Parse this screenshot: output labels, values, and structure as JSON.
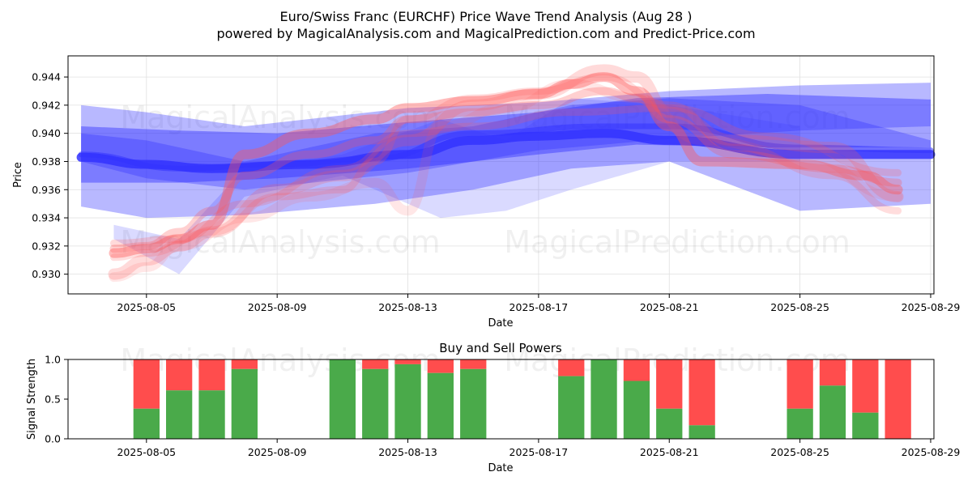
{
  "header": {
    "title": "Euro/Swiss Franc (EURCHF) Price Wave Trend Analysis (Aug 28 )",
    "subtitle": "powered by MagicalAnalysis.com and MagicalPrediction.com and Predict-Price.com"
  },
  "watermarks": [
    "MagicalAnalysis.com",
    "MagicalPrediction.com"
  ],
  "colors": {
    "buy": "#4aaa4a",
    "sell": "#ff4d4d",
    "blue_wave": "#3333ff",
    "red_wave": "#ff5555",
    "grid": "#e0e0e0",
    "axis": "#000000"
  },
  "chart_data": [
    {
      "type": "line",
      "xlabel": "Date",
      "ylabel": "Price",
      "x_axis": "date",
      "xlim": [
        "2025-08-02.6",
        "2025-08-29.1"
      ],
      "ylim": [
        0.9286,
        0.9455
      ],
      "x_ticks": [
        "2025-08-05",
        "2025-08-09",
        "2025-08-13",
        "2025-08-17",
        "2025-08-21",
        "2025-08-25",
        "2025-08-29"
      ],
      "y_ticks": [
        0.93,
        0.932,
        0.934,
        0.936,
        0.938,
        0.94,
        0.942,
        0.944
      ],
      "y_tick_labels": [
        "0.930",
        "0.932",
        "0.934",
        "0.936",
        "0.938",
        "0.940",
        "0.942",
        "0.944"
      ],
      "grid": true,
      "blue_bands": [
        {
          "x": [
            "2025-08-03",
            "2025-08-05",
            "2025-08-08",
            "2025-08-13",
            "2025-08-17",
            "2025-08-21",
            "2025-08-25",
            "2025-08-29"
          ],
          "upper": [
            0.942,
            0.9415,
            0.9405,
            0.9418,
            0.9422,
            0.943,
            0.9434,
            0.9436
          ],
          "lower": [
            0.938,
            0.9368,
            0.936,
            0.9372,
            0.9388,
            0.9396,
            0.9402,
            0.9405
          ],
          "opacity": 0.35
        },
        {
          "x": [
            "2025-08-03",
            "2025-08-06",
            "2025-08-09",
            "2025-08-13",
            "2025-08-17",
            "2025-08-20",
            "2025-08-24",
            "2025-08-29"
          ],
          "upper": [
            0.9405,
            0.9402,
            0.94,
            0.9408,
            0.9415,
            0.9425,
            0.9428,
            0.9424
          ],
          "lower": [
            0.9365,
            0.9365,
            0.9368,
            0.9375,
            0.9385,
            0.9392,
            0.939,
            0.939
          ],
          "opacity": 0.45
        },
        {
          "x": [
            "2025-08-03",
            "2025-08-05",
            "2025-08-08",
            "2025-08-12",
            "2025-08-15",
            "2025-08-18",
            "2025-08-21",
            "2025-08-25",
            "2025-08-29"
          ],
          "upper": [
            0.94,
            0.9395,
            0.938,
            0.94,
            0.9405,
            0.942,
            0.9425,
            0.942,
            0.9395
          ],
          "lower": [
            0.9348,
            0.934,
            0.9342,
            0.935,
            0.936,
            0.9375,
            0.938,
            0.9345,
            0.935
          ],
          "opacity": 0.35
        },
        {
          "x": [
            "2025-08-04",
            "2025-08-06",
            "2025-08-08",
            "2025-08-11",
            "2025-08-14",
            "2025-08-16",
            "2025-08-18",
            "2025-08-21",
            "2025-08-25"
          ],
          "upper": [
            0.9335,
            0.9325,
            0.9375,
            0.9385,
            0.941,
            0.9395,
            0.9425,
            0.942,
            0.9405
          ],
          "lower": [
            0.9325,
            0.93,
            0.9355,
            0.937,
            0.934,
            0.9345,
            0.936,
            0.938,
            0.938
          ],
          "opacity": 0.18
        }
      ],
      "blue_lines": [
        {
          "x": [
            "2025-08-03",
            "2025-08-05",
            "2025-08-07",
            "2025-08-10",
            "2025-08-13",
            "2025-08-15",
            "2025-08-17",
            "2025-08-19",
            "2025-08-21",
            "2025-08-25",
            "2025-08-29"
          ],
          "y": [
            0.9383,
            0.9378,
            0.9375,
            0.9378,
            0.9385,
            0.9395,
            0.9398,
            0.94,
            0.9395,
            0.9385,
            0.9385
          ],
          "width": 11,
          "opacity": 0.85
        },
        {
          "x": [
            "2025-08-03",
            "2025-08-06",
            "2025-08-09",
            "2025-08-12",
            "2025-08-15",
            "2025-08-19",
            "2025-08-21",
            "2025-08-25",
            "2025-08-29"
          ],
          "y": [
            0.9385,
            0.9375,
            0.9378,
            0.9382,
            0.94,
            0.9405,
            0.9405,
            0.939,
            0.9388
          ],
          "width": 7,
          "opacity": 0.55
        }
      ],
      "red_lines": [
        {
          "x": [
            "2025-08-04",
            "2025-08-05",
            "2025-08-06",
            "2025-08-07",
            "2025-08-08",
            "2025-08-10",
            "2025-08-12",
            "2025-08-13",
            "2025-08-15",
            "2025-08-17",
            "2025-08-18",
            "2025-08-19",
            "2025-08-20",
            "2025-08-21",
            "2025-08-22",
            "2025-08-25",
            "2025-08-27",
            "2025-08-28"
          ],
          "y": [
            0.9315,
            0.9318,
            0.9325,
            0.9335,
            0.9385,
            0.94,
            0.941,
            0.9418,
            0.9423,
            0.9428,
            0.9435,
            0.944,
            0.943,
            0.9405,
            0.938,
            0.9378,
            0.937,
            0.936
          ],
          "width": 12,
          "opacity": 0.4
        },
        {
          "x": [
            "2025-08-04",
            "2025-08-05",
            "2025-08-06",
            "2025-08-07",
            "2025-08-09",
            "2025-08-11",
            "2025-08-13",
            "2025-08-15",
            "2025-08-17",
            "2025-08-19",
            "2025-08-20",
            "2025-08-21",
            "2025-08-23",
            "2025-08-26",
            "2025-08-28"
          ],
          "y": [
            0.93,
            0.931,
            0.932,
            0.933,
            0.936,
            0.937,
            0.9395,
            0.942,
            0.9428,
            0.9445,
            0.944,
            0.9415,
            0.9395,
            0.939,
            0.9355
          ],
          "width": 14,
          "opacity": 0.22
        },
        {
          "x": [
            "2025-08-04",
            "2025-08-05",
            "2025-08-06",
            "2025-08-07",
            "2025-08-08",
            "2025-08-10",
            "2025-08-12",
            "2025-08-13",
            "2025-08-15",
            "2025-08-17",
            "2025-08-19",
            "2025-08-20",
            "2025-08-21",
            "2025-08-23",
            "2025-08-26",
            "2025-08-28"
          ],
          "y": [
            0.9318,
            0.932,
            0.933,
            0.9345,
            0.937,
            0.9385,
            0.9395,
            0.941,
            0.9415,
            0.942,
            0.943,
            0.9425,
            0.941,
            0.9385,
            0.9375,
            0.9365
          ],
          "width": 10,
          "opacity": 0.28
        },
        {
          "x": [
            "2025-08-04",
            "2025-08-05",
            "2025-08-07",
            "2025-08-09",
            "2025-08-11",
            "2025-08-12",
            "2025-08-13",
            "2025-08-15",
            "2025-08-17",
            "2025-08-19",
            "2025-08-21",
            "2025-08-23",
            "2025-08-26",
            "2025-08-28"
          ],
          "y": [
            0.9312,
            0.9315,
            0.933,
            0.9355,
            0.936,
            0.938,
            0.941,
            0.9425,
            0.943,
            0.944,
            0.942,
            0.939,
            0.937,
            0.9345
          ],
          "width": 9,
          "opacity": 0.2
        },
        {
          "x": [
            "2025-08-04",
            "2025-08-05",
            "2025-08-06",
            "2025-08-08",
            "2025-08-10",
            "2025-08-12",
            "2025-08-13",
            "2025-08-14",
            "2025-08-16",
            "2025-08-18",
            "2025-08-20",
            "2025-08-22",
            "2025-08-25",
            "2025-08-28"
          ],
          "y": [
            0.9298,
            0.9305,
            0.932,
            0.934,
            0.9355,
            0.9365,
            0.9345,
            0.9405,
            0.9418,
            0.9435,
            0.9425,
            0.9395,
            0.9385,
            0.9355
          ],
          "width": 12,
          "opacity": 0.14
        },
        {
          "x": [
            "2025-08-04",
            "2025-08-06",
            "2025-08-08",
            "2025-08-11",
            "2025-08-13",
            "2025-08-15",
            "2025-08-18",
            "2025-08-21",
            "2025-08-24",
            "2025-08-28"
          ],
          "y": [
            0.9322,
            0.9325,
            0.935,
            0.9375,
            0.94,
            0.9405,
            0.9415,
            0.9418,
            0.9398,
            0.9372
          ],
          "width": 9,
          "opacity": 0.22
        }
      ]
    },
    {
      "type": "bar",
      "title": "Buy and Sell Powers",
      "xlabel": "Date",
      "ylabel": "Signal Strength",
      "x_axis": "date",
      "xlim": [
        "2025-08-02.6",
        "2025-08-29.1"
      ],
      "ylim": [
        0,
        1
      ],
      "x_ticks": [
        "2025-08-05",
        "2025-08-09",
        "2025-08-13",
        "2025-08-17",
        "2025-08-21",
        "2025-08-25",
        "2025-08-29"
      ],
      "y_ticks": [
        0.0,
        0.5,
        1.0
      ],
      "y_tick_labels": [
        "0.0",
        "0.5",
        "1.0"
      ],
      "series": [
        {
          "name": "Buy",
          "color": "#4aaa4a"
        },
        {
          "name": "Sell",
          "color": "#ff4d4d"
        }
      ],
      "bars": [
        {
          "date": "2025-08-05",
          "buy": 0.38
        },
        {
          "date": "2025-08-06",
          "buy": 0.61
        },
        {
          "date": "2025-08-07",
          "buy": 0.61
        },
        {
          "date": "2025-08-08",
          "buy": 0.88
        },
        {
          "date": "2025-08-11",
          "buy": 1.0
        },
        {
          "date": "2025-08-12",
          "buy": 0.88
        },
        {
          "date": "2025-08-13",
          "buy": 0.94
        },
        {
          "date": "2025-08-14",
          "buy": 0.83
        },
        {
          "date": "2025-08-15",
          "buy": 0.88
        },
        {
          "date": "2025-08-18",
          "buy": 0.79
        },
        {
          "date": "2025-08-19",
          "buy": 1.0
        },
        {
          "date": "2025-08-20",
          "buy": 0.73
        },
        {
          "date": "2025-08-21",
          "buy": 0.38
        },
        {
          "date": "2025-08-22",
          "buy": 0.17
        },
        {
          "date": "2025-08-25",
          "buy": 0.38
        },
        {
          "date": "2025-08-26",
          "buy": 0.67
        },
        {
          "date": "2025-08-27",
          "buy": 0.33
        },
        {
          "date": "2025-08-28",
          "buy": 0.0
        }
      ]
    }
  ]
}
